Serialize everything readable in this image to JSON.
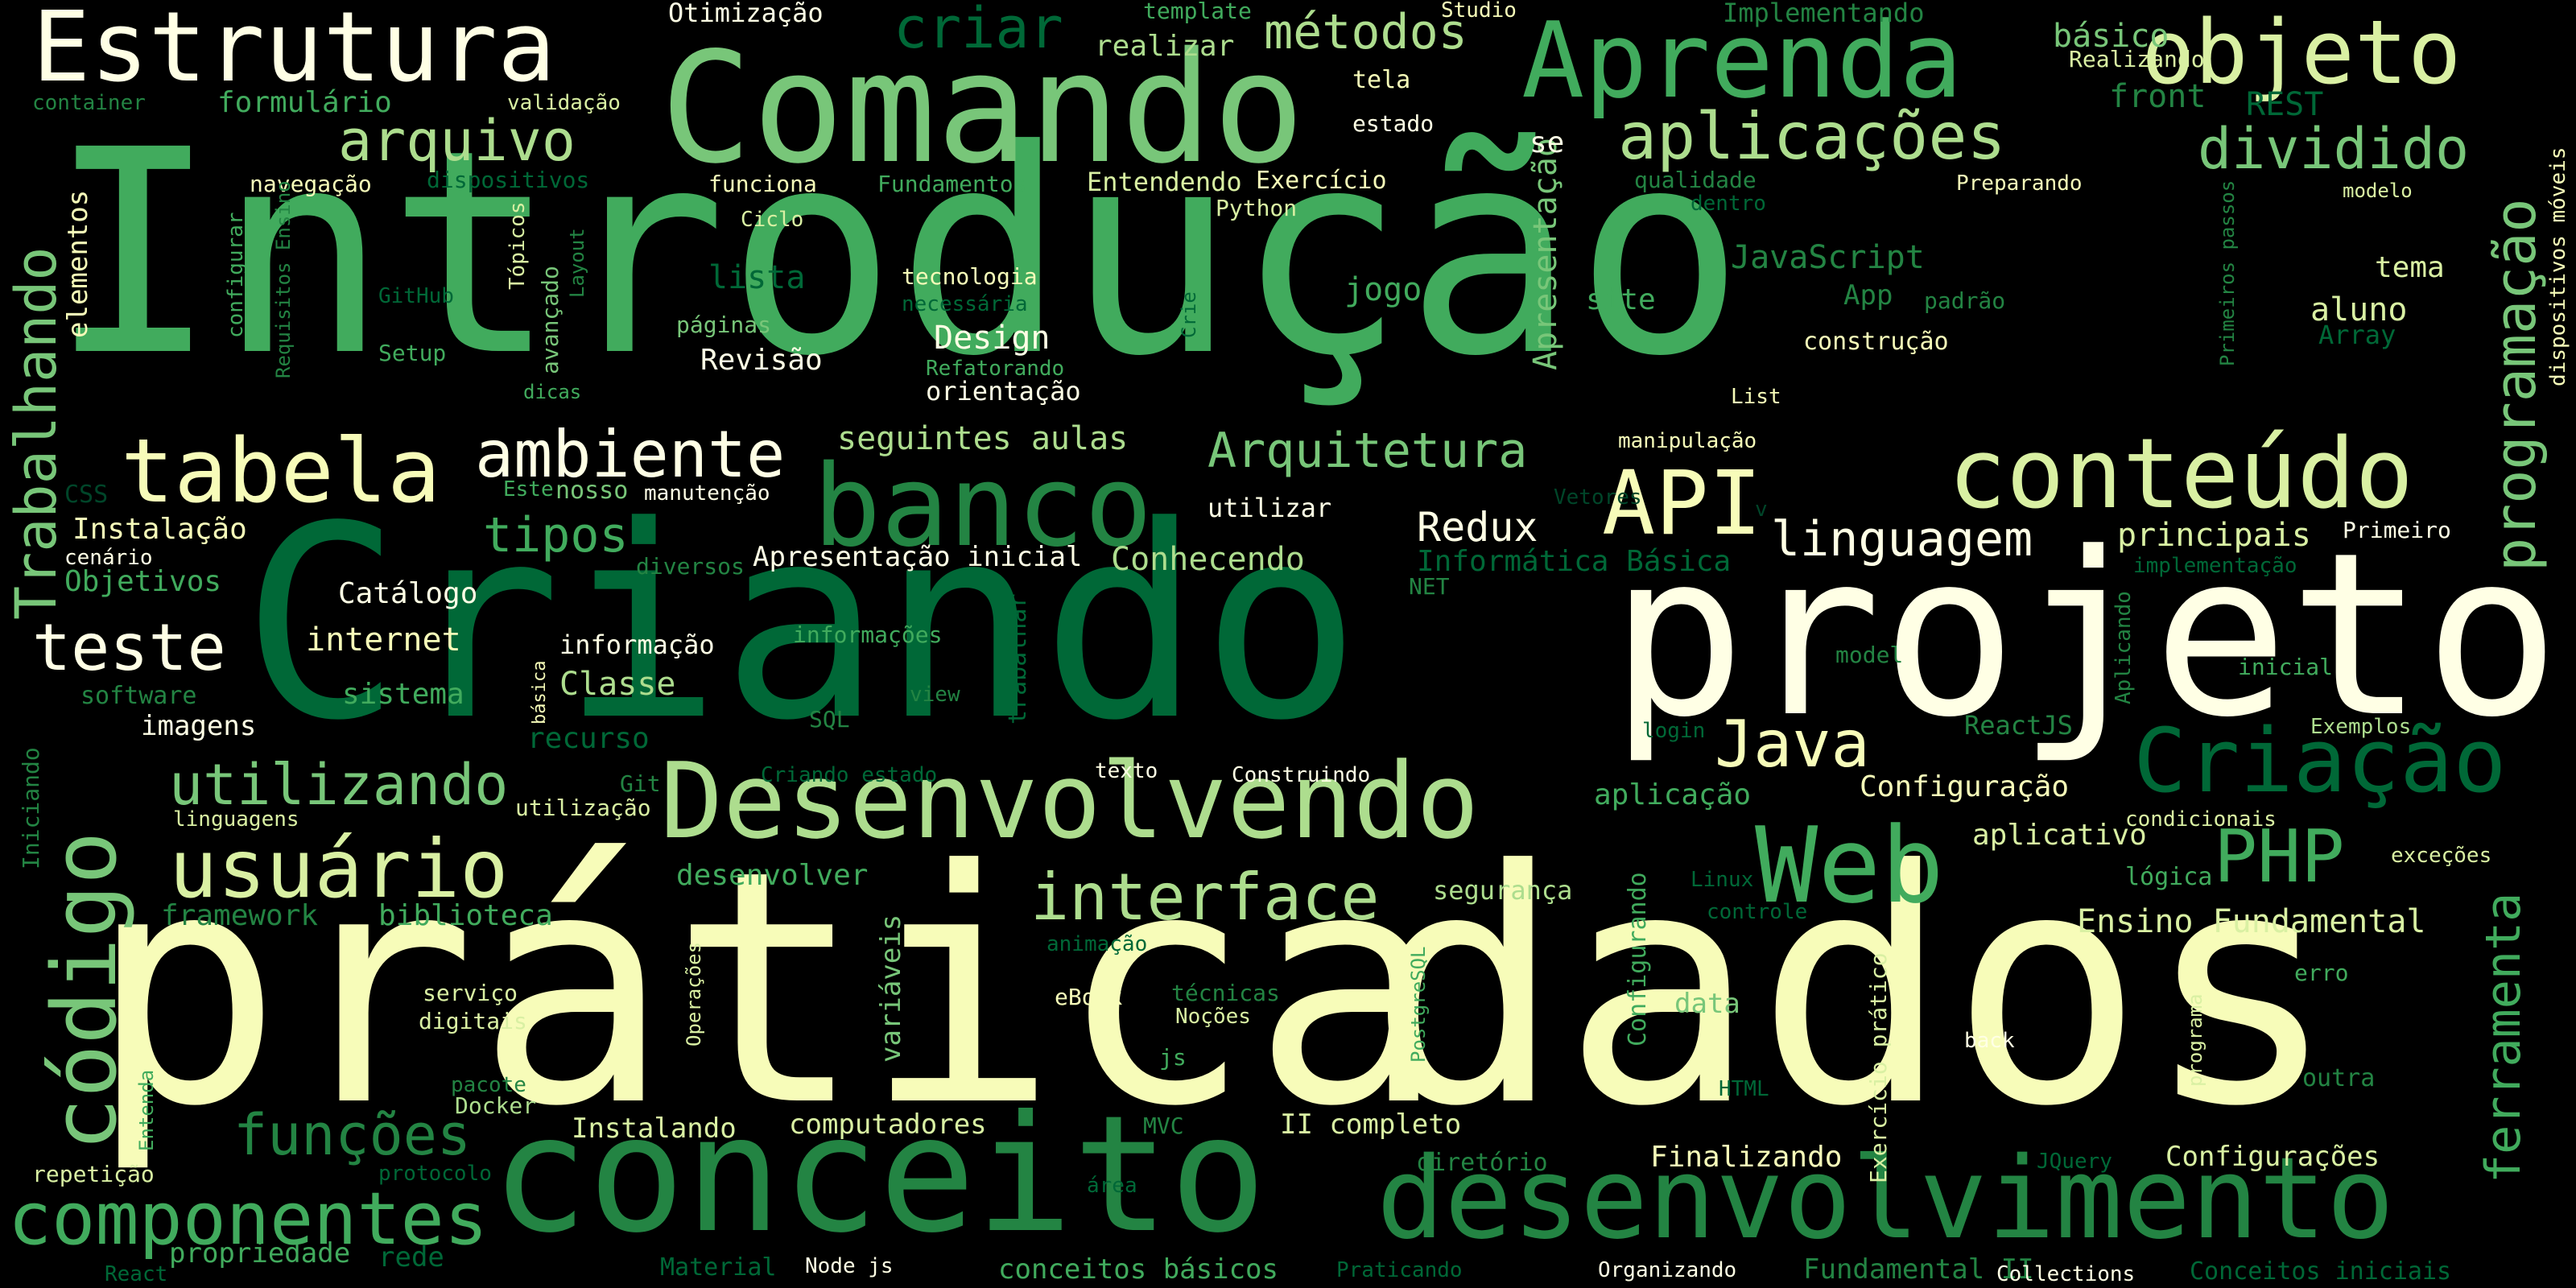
{
  "colors": {
    "background": "#000000",
    "palette": [
      "#ffffe5",
      "#f7fcb9",
      "#d9f0a3",
      "#addd8e",
      "#78c679",
      "#41ab5d",
      "#238443",
      "#006837",
      "#004529"
    ]
  },
  "words": {
    "introducao": "Introdução",
    "pratica": "prática",
    "dados": "dados",
    "criando": "Criando",
    "projeto": "projeto",
    "conceito": "conceito",
    "desenvolvimento": "desenvolvimento",
    "comando": "Comando",
    "desenvolvendo": "Desenvolvendo",
    "estrutura": "Estrutura",
    "aprenda": "Aprenda",
    "objeto": "objeto",
    "banco": "banco",
    "conteudo": "conteúdo",
    "web": "Web",
    "codigo": "código",
    "criacao": "Criação",
    "componentes": "componentes",
    "usuario": "usuário",
    "tabela": "tabela",
    "api": "API",
    "php": "PHP",
    "trabalhando": "Trabalhando",
    "programacao": "programação",
    "ferramenta": "ferramenta",
    "ambiente": "ambiente",
    "interface": "interface",
    "teste": "teste",
    "aplicacoes": "aplicações",
    "arquivo": "arquivo",
    "criar": "criar",
    "metodos": "métodos",
    "dividido": "dividido",
    "arquitetura": "Arquitetura",
    "linguagem": "linguagem",
    "java": "Java",
    "utilizando": "utilizando",
    "funcoes": "funções",
    "tipos": "tipos",
    "redux": "Redux",
    "apresentacao": "Apresentação",
    "otimizacao": "Otimização",
    "template": "template",
    "studio": "Studio",
    "implementando": "Implementando",
    "basico": "básico",
    "realizar": "realizar",
    "tela": "tela",
    "realizando": "Realizando",
    "container": "container",
    "formulario": "formulário",
    "validacao": "validação",
    "front": "front",
    "rest": "REST",
    "estado": "estado",
    "dispositivos_moveis": "dispositivos móveis",
    "navegacao": "navegação",
    "dispositivos": "dispositivos",
    "funciona": "funciona",
    "fundamentos": "Fundamentos",
    "entendendo": "Entendendo",
    "exercicio": "Exercício",
    "se": "se",
    "qualidade": "qualidade",
    "preparando": "Preparando",
    "modelo": "modelo",
    "dentro": "dentro",
    "python": "Python",
    "ciclo": "Ciclo",
    "topicos": "Tópicos",
    "elementos": "elementos",
    "configurar": "configurar",
    "requisitos_ensino": "Requisitos Ensino",
    "layout": "Layout",
    "avancado": "avançado",
    "github": "GitHub",
    "setup": "Setup",
    "dicas": "dicas",
    "lista": "lista",
    "tecnologia": "tecnologia",
    "necessaria": "necessária",
    "crie": "Crie",
    "jogo": "jogo",
    "javascript": "JavaScript",
    "app": "App",
    "padrao": "padrão",
    "tema": "tema",
    "aluno": "aluno",
    "array": "Array",
    "primeiros_passos": "Primeiros passos",
    "site": "site",
    "construcao": "construção",
    "paginas": "páginas",
    "design": "Design",
    "revisao": "Revisão",
    "refatorando": "Refatorando",
    "orientacao": "orientação",
    "list": "List",
    "seguintes_aulas": "seguintes aulas",
    "manipulacao": "manipulação",
    "css": "CSS",
    "este": "Este",
    "nosso": "nosso",
    "manutencao": "manutenção",
    "utilizar": "utilizar",
    "vetores": "Vetores",
    "v": "v",
    "instalacao": "Instalação",
    "cenario": "cenário",
    "objetivos": "Objetivos",
    "diversos": "diversos",
    "apresentacao_inicial": "Apresentação inicial",
    "conhecendo": "Conhecendo",
    "principais": "principais",
    "primeiro": "Primeiro",
    "informatica_basica": "Informática Básica",
    "implementacao": "implementação",
    "net": "NET",
    "catalogo": "Catálogo",
    "internet": "internet",
    "informacao": "informação",
    "informacoes": "informações",
    "aplicando": "Aplicando",
    "model": "model",
    "inicial": "inicial",
    "software": "software",
    "sistema": "sistema",
    "classe": "Classe",
    "basica": "básica",
    "trabalhar": "trabalhar",
    "view": "view",
    "login": "login",
    "imagens": "imagens",
    "recurso": "recurso",
    "sql": "SQL",
    "reactjs": "ReactJS",
    "exemplos": "Exemplos",
    "iniciando": "Iniciando",
    "git": "Git",
    "criando_estado": "Criando estado",
    "texto": "texto",
    "construindo": "Construindo",
    "linguagens": "linguagens",
    "utilizacao": "utilização",
    "aplicacao": "aplicação",
    "configuracao": "Configuração",
    "condicionais": "condicionais",
    "aplicativo": "aplicativo",
    "excecoes": "exceções",
    "logica": "lógica",
    "linux": "Linux",
    "desenvolver": "desenvolver",
    "configurando": "Configurando",
    "seguranca": "segurança",
    "controle": "controle",
    "framework": "framework",
    "biblioteca": "biblioteca",
    "operacoes": "Operações",
    "variaveis": "variáveis",
    "animacao": "animação",
    "postgresql": "PostgreSQL",
    "ensino_fundamental": "Ensino Fundamental",
    "exercicio_pratico": "Exercício prático",
    "erro": "erro",
    "servico": "serviço",
    "digitais": "digitais",
    "ebook": "eBook",
    "tecnicas": "técnicas",
    "nocoes": "Noções",
    "data": "data",
    "back": "back",
    "programa": "programa",
    "js": "js",
    "pacote": "pacote",
    "docker": "Docker",
    "entenda": "Entenda",
    "html": "HTML",
    "outra": "outra",
    "instalando": "Instalando",
    "computadores": "computadores",
    "mvc": "MVC",
    "ii_completo": "II completo",
    "repeticao": "repetição",
    "protocolo": "protocolo",
    "diretorio": "diretório",
    "finalizando": "Finalizando",
    "jquery": "JQuery",
    "configuracoes": "Configurações",
    "area": "área",
    "propriedade": "propriedade",
    "rede": "rede",
    "react": "React",
    "material": "Material",
    "node_js": "Node js",
    "conceitos_basicos": "conceitos básicos",
    "praticando": "Praticando",
    "organizando": "Organizando",
    "fundamental_ii": "Fundamental II",
    "collections": "Collections",
    "conceitos_iniciais": "Conceitos iniciais"
  }
}
